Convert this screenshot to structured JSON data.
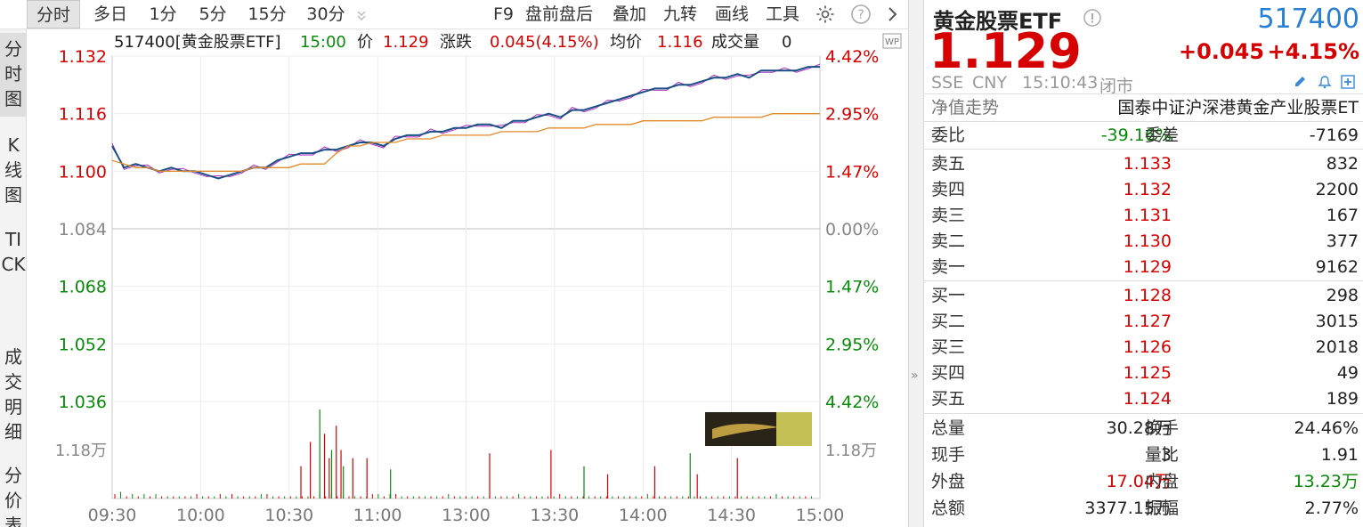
{
  "toolbar": {
    "tabs": [
      "分时",
      "多日",
      "1分",
      "5分",
      "15分",
      "30分"
    ],
    "tools": [
      "F9",
      "盘前盘后",
      "叠加",
      "九转",
      "画线",
      "工具"
    ]
  },
  "vtabs": [
    "分时图",
    "K线图",
    "TICK",
    "成交明细",
    "分价表"
  ],
  "info": {
    "code_name": "517400[黄金股票ETF]",
    "time": "15:00",
    "price_label": "价",
    "price": "1.129",
    "change_label": "涨跌",
    "change": "0.045(4.15%)",
    "avg_label": "均价",
    "avg": "1.116",
    "vol_label": "成交量",
    "vol": "0"
  },
  "wp_badge": "WP",
  "chart_data": {
    "type": "line",
    "prev_close": 1.084,
    "ylim": [
      1.036,
      1.132
    ],
    "y_ticks_left": [
      "1.132",
      "1.116",
      "1.100",
      "1.084",
      "1.068",
      "1.052",
      "1.036"
    ],
    "y_ticks_right": [
      "4.42%",
      "2.95%",
      "1.47%",
      "0.00%",
      "1.47%",
      "2.95%",
      "4.42%"
    ],
    "x_ticks": [
      "09:30",
      "10:00",
      "10:30",
      "11:00",
      "13:00",
      "13:30",
      "14:00",
      "14:30",
      "15:00"
    ],
    "volume_tick_left": "1.18万",
    "volume_tick_right": "1.18万",
    "series": [
      {
        "name": "价",
        "color": "#1a4f86",
        "values": [
          1.107,
          1.101,
          1.102,
          1.101,
          1.1,
          1.101,
          1.1,
          1.1,
          1.099,
          1.098,
          1.099,
          1.1,
          1.101,
          1.101,
          1.103,
          1.104,
          1.105,
          1.105,
          1.106,
          1.106,
          1.107,
          1.108,
          1.108,
          1.107,
          1.109,
          1.11,
          1.11,
          1.111,
          1.111,
          1.112,
          1.112,
          1.113,
          1.113,
          1.112,
          1.114,
          1.114,
          1.115,
          1.116,
          1.115,
          1.117,
          1.117,
          1.118,
          1.119,
          1.12,
          1.121,
          1.122,
          1.123,
          1.123,
          1.124,
          1.124,
          1.125,
          1.126,
          1.126,
          1.127,
          1.126,
          1.128,
          1.128,
          1.128,
          1.128,
          1.129,
          1.129
        ]
      },
      {
        "name": "均价",
        "color": "#e08a28",
        "values": [
          1.103,
          1.102,
          1.101,
          1.101,
          1.1,
          1.1,
          1.1,
          1.1,
          1.1,
          1.1,
          1.1,
          1.1,
          1.101,
          1.101,
          1.101,
          1.101,
          1.102,
          1.102,
          1.102,
          1.105,
          1.107,
          1.107,
          1.108,
          1.108,
          1.108,
          1.109,
          1.109,
          1.109,
          1.11,
          1.11,
          1.11,
          1.11,
          1.11,
          1.111,
          1.111,
          1.111,
          1.111,
          1.112,
          1.112,
          1.112,
          1.112,
          1.113,
          1.113,
          1.113,
          1.113,
          1.114,
          1.114,
          1.114,
          1.114,
          1.114,
          1.114,
          1.115,
          1.115,
          1.115,
          1.115,
          1.115,
          1.116,
          1.116,
          1.116,
          1.116,
          1.116
        ]
      }
    ],
    "volume_ticks_10min": [
      2,
      3,
      1,
      2,
      1,
      2,
      1,
      2,
      1,
      1,
      1,
      1,
      1,
      1,
      2,
      1,
      1,
      1,
      2,
      1,
      2,
      1,
      1,
      1,
      1,
      2,
      2,
      1,
      1,
      1,
      1,
      1,
      1,
      1,
      1,
      2,
      1,
      2,
      1,
      1,
      1,
      1,
      1,
      1,
      2,
      2,
      1,
      2,
      2,
      1,
      1,
      1,
      1,
      1,
      1,
      1,
      1,
      2,
      1,
      1,
      1,
      1,
      1,
      1,
      1,
      1,
      1,
      1,
      1,
      2,
      1,
      1,
      1,
      1,
      1,
      1,
      2,
      1,
      1,
      1,
      1,
      1,
      1,
      1,
      1,
      1,
      1,
      1,
      1,
      1,
      1,
      2,
      1,
      1,
      1,
      1,
      1,
      1,
      1,
      1,
      1,
      1,
      1,
      1,
      1,
      1,
      1,
      1,
      1,
      1,
      1,
      1,
      1,
      2,
      1,
      1,
      1,
      1,
      1,
      1
    ],
    "volume_big": [
      [
        80,
        2
      ],
      [
        84,
        3.5
      ],
      [
        88,
        5.5
      ],
      [
        90,
        4
      ],
      [
        92,
        2.5
      ],
      [
        93,
        3
      ],
      [
        95,
        4.5
      ],
      [
        97,
        3
      ],
      [
        98,
        2
      ],
      [
        102,
        2.5
      ],
      [
        108,
        2.5
      ],
      [
        118,
        1.8
      ],
      [
        160,
        2.8
      ],
      [
        186,
        3
      ],
      [
        200,
        2
      ],
      [
        210,
        1.5
      ],
      [
        230,
        2
      ],
      [
        245,
        2.8
      ],
      [
        248,
        1.5
      ],
      [
        265,
        2.5
      ]
    ]
  },
  "panel": {
    "name": "黄金股票ETF",
    "code": "517400",
    "price": "1.129",
    "change": "+0.045",
    "change_pct": "+4.15%",
    "exchange": "SSE",
    "currency": "CNY",
    "time": "15:10:43",
    "status": "闭市",
    "nav_label": "净值走势",
    "fund_name": "国泰中证沪深港黄金产业股票ET",
    "weibi_label": "委比",
    "weibi": "-39.16%",
    "weicha_label": "委差",
    "weicha": "-7169",
    "asks": [
      {
        "label": "卖五",
        "price": "1.133",
        "vol": "832"
      },
      {
        "label": "卖四",
        "price": "1.132",
        "vol": "2200"
      },
      {
        "label": "卖三",
        "price": "1.131",
        "vol": "167"
      },
      {
        "label": "卖二",
        "price": "1.130",
        "vol": "377"
      },
      {
        "label": "卖一",
        "price": "1.129",
        "vol": "9162"
      }
    ],
    "bids": [
      {
        "label": "买一",
        "price": "1.128",
        "vol": "298"
      },
      {
        "label": "买二",
        "price": "1.127",
        "vol": "3015"
      },
      {
        "label": "买三",
        "price": "1.126",
        "vol": "2018"
      },
      {
        "label": "买四",
        "price": "1.125",
        "vol": "49"
      },
      {
        "label": "买五",
        "price": "1.124",
        "vol": "189"
      }
    ],
    "stats": [
      {
        "l1": "总量",
        "v1": "30.28万",
        "c1": "#222",
        "l2": "换手",
        "v2": "24.46%",
        "c2": "#222"
      },
      {
        "l1": "现手",
        "v1": "3",
        "c1": "#222",
        "l2": "量比",
        "v2": "1.91",
        "c2": "#222"
      },
      {
        "l1": "外盘",
        "v1": "17.04万",
        "c1": "#d60000",
        "l2": "内盘",
        "v2": "13.23万",
        "c2": "#0a8a0a"
      },
      {
        "l1": "总额",
        "v1": "3377.15万",
        "c1": "#222",
        "l2": "振幅",
        "v2": "2.77%",
        "c2": "#222"
      }
    ]
  },
  "colors": {
    "up": "#d60000",
    "down": "#0a8a0a",
    "accent": "#2a7fd4",
    "price_line": "#1a4f86",
    "avg_line": "#e08a28",
    "compare_line": "#b030c0"
  }
}
